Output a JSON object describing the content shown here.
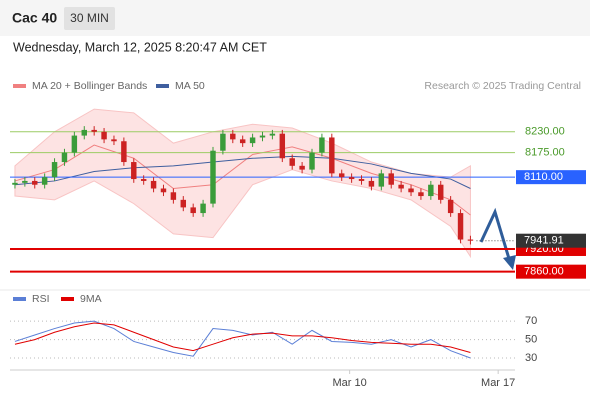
{
  "header": {
    "symbol": "Cac 40",
    "interval": "30 MIN",
    "timestamp": "Wednesday, March 12, 2025 8:20:47 AM CET",
    "credit": "Research © 2025 Trading Central"
  },
  "chart_data": [
    {
      "type": "candlestick",
      "up_color": "#3a9c3a",
      "down_color": "#cc2222",
      "open": [
        8090,
        8095,
        8100,
        8090,
        8110,
        8150,
        8175,
        8220,
        8235,
        8230,
        8210,
        8205,
        8150,
        8105,
        8100,
        8080,
        8070,
        8050,
        8030,
        8015,
        8040,
        8180,
        8225,
        8210,
        8200,
        8215,
        8220,
        8225,
        8160,
        8140,
        8130,
        8175,
        8215,
        8120,
        8110,
        8105,
        8100,
        8085,
        8120,
        8090,
        8080,
        8070,
        8060,
        8090,
        8050,
        8015,
        7945
      ],
      "high": [
        8105,
        8110,
        8110,
        8120,
        8160,
        8185,
        8230,
        8245,
        8245,
        8240,
        8220,
        8215,
        8160,
        8115,
        8110,
        8090,
        8080,
        8060,
        8040,
        8050,
        8190,
        8235,
        8235,
        8220,
        8225,
        8230,
        8235,
        8235,
        8170,
        8150,
        8185,
        8225,
        8225,
        8130,
        8120,
        8115,
        8110,
        8130,
        8130,
        8100,
        8090,
        8080,
        8100,
        8100,
        8060,
        8025,
        7955
      ],
      "low": [
        8080,
        8085,
        8080,
        8080,
        8100,
        8140,
        8165,
        8210,
        8220,
        8200,
        8195,
        8140,
        8095,
        8090,
        8070,
        8060,
        8040,
        8020,
        8005,
        8005,
        8030,
        8170,
        8200,
        8190,
        8190,
        8205,
        8210,
        8150,
        8130,
        8120,
        8120,
        8165,
        8110,
        8100,
        8095,
        8090,
        8075,
        8075,
        8080,
        8070,
        8060,
        8050,
        8050,
        8040,
        8005,
        7935,
        7932
      ],
      "close": [
        8095,
        8100,
        8090,
        8110,
        8150,
        8175,
        8220,
        8235,
        8230,
        8210,
        8205,
        8150,
        8105,
        8100,
        8080,
        8070,
        8050,
        8030,
        8015,
        8040,
        8180,
        8225,
        8210,
        8200,
        8215,
        8220,
        8225,
        8160,
        8140,
        8130,
        8175,
        8215,
        8120,
        8110,
        8105,
        8100,
        8085,
        8120,
        8090,
        8080,
        8070,
        8060,
        8090,
        8050,
        8015,
        7945,
        7941.91
      ],
      "series": [
        {
          "name": "MA 20 + Bollinger Bands",
          "color": "#f08080",
          "band_color": "#fde3e3",
          "x": [
            0,
            4,
            8,
            12,
            16,
            20,
            24,
            28,
            32,
            36,
            40,
            44,
            46
          ],
          "values": [
            8100,
            8130,
            8195,
            8160,
            8080,
            8090,
            8170,
            8190,
            8160,
            8120,
            8090,
            8050,
            8010
          ],
          "band_upper": [
            8140,
            8230,
            8290,
            8280,
            8200,
            8230,
            8250,
            8240,
            8200,
            8150,
            8120,
            8110,
            8140
          ],
          "band_lower": [
            8060,
            8050,
            8100,
            8040,
            7960,
            7950,
            8090,
            8130,
            8100,
            8080,
            8050,
            7980,
            7900
          ]
        },
        {
          "name": "MA 50",
          "color": "#3f5f9f",
          "x": [
            0,
            4,
            8,
            12,
            16,
            20,
            24,
            28,
            32,
            36,
            40,
            44,
            46
          ],
          "values": [
            8090,
            8100,
            8125,
            8135,
            8140,
            8150,
            8160,
            8165,
            8160,
            8145,
            8120,
            8105,
            8080
          ]
        }
      ],
      "levels": [
        {
          "value": 8230,
          "label": "8230.00",
          "color": "#9ccc65"
        },
        {
          "value": 8175,
          "label": "8175.00",
          "color": "#9ccc65"
        },
        {
          "value": 8110,
          "label": "8110.00",
          "color": "#2962ff"
        },
        {
          "value": 7920,
          "label": "7920.00",
          "color": "#e00000"
        },
        {
          "value": 7860,
          "label": "7860.00",
          "color": "#e00000"
        }
      ],
      "last": 7941.91,
      "ylim": [
        7830,
        8330
      ],
      "xlim": [
        -0.5,
        50.5
      ],
      "xticks": [
        {
          "value": 33.8,
          "label": "Mar 10"
        },
        {
          "value": 48.8,
          "label": "Mar 17"
        }
      ]
    },
    {
      "type": "line",
      "series": [
        {
          "name": "RSI",
          "color": "#5b7fd6",
          "x": [
            0,
            2,
            4,
            6,
            8,
            10,
            12,
            14,
            16,
            18,
            20,
            22,
            24,
            26,
            28,
            30,
            32,
            34,
            36,
            38,
            40,
            42,
            44,
            46
          ],
          "values": [
            48,
            55,
            62,
            68,
            70,
            62,
            48,
            42,
            36,
            32,
            62,
            60,
            55,
            58,
            45,
            60,
            48,
            47,
            45,
            50,
            42,
            50,
            38,
            30
          ]
        },
        {
          "name": "9MA",
          "color": "#e00000",
          "x": [
            0,
            2,
            4,
            6,
            8,
            10,
            12,
            14,
            16,
            18,
            20,
            22,
            24,
            26,
            28,
            30,
            32,
            34,
            36,
            38,
            40,
            42,
            44,
            46
          ],
          "values": [
            45,
            50,
            58,
            64,
            68,
            66,
            58,
            50,
            42,
            38,
            45,
            52,
            56,
            57,
            54,
            54,
            52,
            49,
            47,
            46,
            45,
            45,
            42,
            36
          ]
        }
      ],
      "ylim": [
        17,
        93
      ],
      "yticks": [
        70,
        50,
        30
      ],
      "xlim": [
        -0.5,
        50.5
      ]
    }
  ]
}
